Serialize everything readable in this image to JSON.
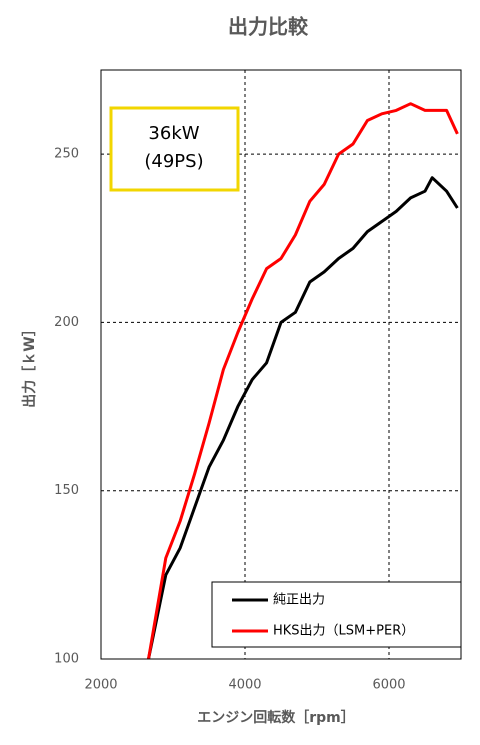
{
  "chart_data": {
    "type": "line",
    "title": "出力比較",
    "x_label": "エンジン回転数［rpm］",
    "y_label": "出力［ｋW］",
    "annotation": [
      "36kW",
      "(49PS)"
    ],
    "x": [
      2660,
      2900,
      3100,
      3300,
      3500,
      3700,
      3900,
      4100,
      4300,
      4500,
      4700,
      4900,
      5100,
      5300,
      5500,
      5700,
      5900,
      6100,
      6300,
      6500,
      6600,
      6800,
      6950
    ],
    "series": [
      {
        "name": "純正出力",
        "color": "#000000",
        "values": [
          100,
          125,
          133,
          145,
          157,
          165,
          175,
          183,
          188,
          200,
          203,
          212,
          215,
          219,
          222,
          227,
          230,
          233,
          237,
          239,
          243,
          239,
          234
        ]
      },
      {
        "name": "HKS出力（LSM+PER）",
        "color": "#ff0000",
        "values": [
          100,
          130,
          141,
          155,
          170,
          186,
          197,
          207,
          216,
          219,
          226,
          236,
          241,
          250,
          253,
          260,
          262,
          263,
          265,
          263,
          263,
          263,
          256
        ]
      }
    ],
    "xlim": [
      2000,
      7000
    ],
    "xticks": [
      2000,
      4000,
      6000
    ],
    "ylim": [
      100,
      275
    ],
    "yticks": [
      100,
      150,
      200,
      250
    ],
    "grid": true,
    "legend": "lower right"
  }
}
